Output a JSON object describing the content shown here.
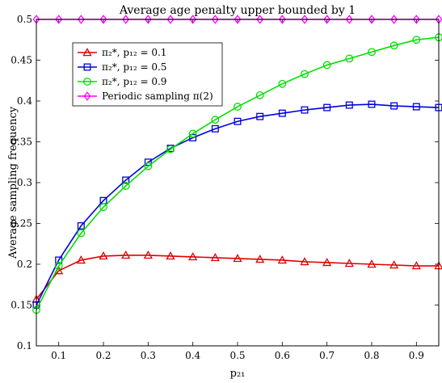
{
  "chart_data": {
    "type": "line",
    "title": "Average age penalty upper bounded by 1",
    "xlabel": "p₂₁",
    "ylabel": "Average sampling frequency",
    "xlim": [
      0.05,
      0.95
    ],
    "ylim": [
      0.1,
      0.5
    ],
    "xticks": [
      0.1,
      0.2,
      0.3,
      0.4,
      0.5,
      0.6,
      0.7,
      0.8,
      0.9
    ],
    "xtick_labels": [
      "0.1",
      "0.2",
      "0.3",
      "0.4",
      "0.5",
      "0.6",
      "0.7",
      "0.8",
      "0.9"
    ],
    "yticks": [
      0.1,
      0.15,
      0.2,
      0.25,
      0.3,
      0.35,
      0.4,
      0.45,
      0.5
    ],
    "ytick_labels": [
      "0.1",
      "0.15",
      "0.2",
      "0.25",
      "0.3",
      "0.35",
      "0.4",
      "0.45",
      "0.5"
    ],
    "grid": false,
    "legend_position": "top-left",
    "x": [
      0.05,
      0.1,
      0.15,
      0.2,
      0.25,
      0.3,
      0.35,
      0.4,
      0.45,
      0.5,
      0.55,
      0.6,
      0.65,
      0.7,
      0.75,
      0.8,
      0.85,
      0.9,
      0.95
    ],
    "series": [
      {
        "name": "π₂*, p₁₂ = 0.1",
        "color": "#e00000",
        "marker": "triangle",
        "values": [
          0.157,
          0.192,
          0.205,
          0.21,
          0.211,
          0.211,
          0.21,
          0.209,
          0.208,
          0.207,
          0.206,
          0.205,
          0.203,
          0.202,
          0.201,
          0.2,
          0.199,
          0.198,
          0.198
        ]
      },
      {
        "name": "π₂*, p₁₂ = 0.5",
        "color": "#0000e0",
        "marker": "square",
        "values": [
          0.15,
          0.205,
          0.247,
          0.278,
          0.303,
          0.325,
          0.342,
          0.355,
          0.366,
          0.375,
          0.381,
          0.385,
          0.389,
          0.392,
          0.395,
          0.396,
          0.394,
          0.393,
          0.392
        ]
      },
      {
        "name": "π₂*, p₁₂ = 0.9",
        "color": "#00e000",
        "marker": "circle",
        "values": [
          0.144,
          0.198,
          0.238,
          0.27,
          0.296,
          0.32,
          0.341,
          0.36,
          0.377,
          0.393,
          0.407,
          0.421,
          0.433,
          0.444,
          0.452,
          0.46,
          0.468,
          0.475,
          0.478
        ]
      },
      {
        "name": "Periodic sampling π(2)",
        "color": "#ff00ff",
        "marker": "diamond",
        "values": [
          0.5,
          0.5,
          0.5,
          0.5,
          0.5,
          0.5,
          0.5,
          0.5,
          0.5,
          0.5,
          0.5,
          0.5,
          0.5,
          0.5,
          0.5,
          0.5,
          0.5,
          0.5,
          0.5
        ]
      }
    ]
  }
}
